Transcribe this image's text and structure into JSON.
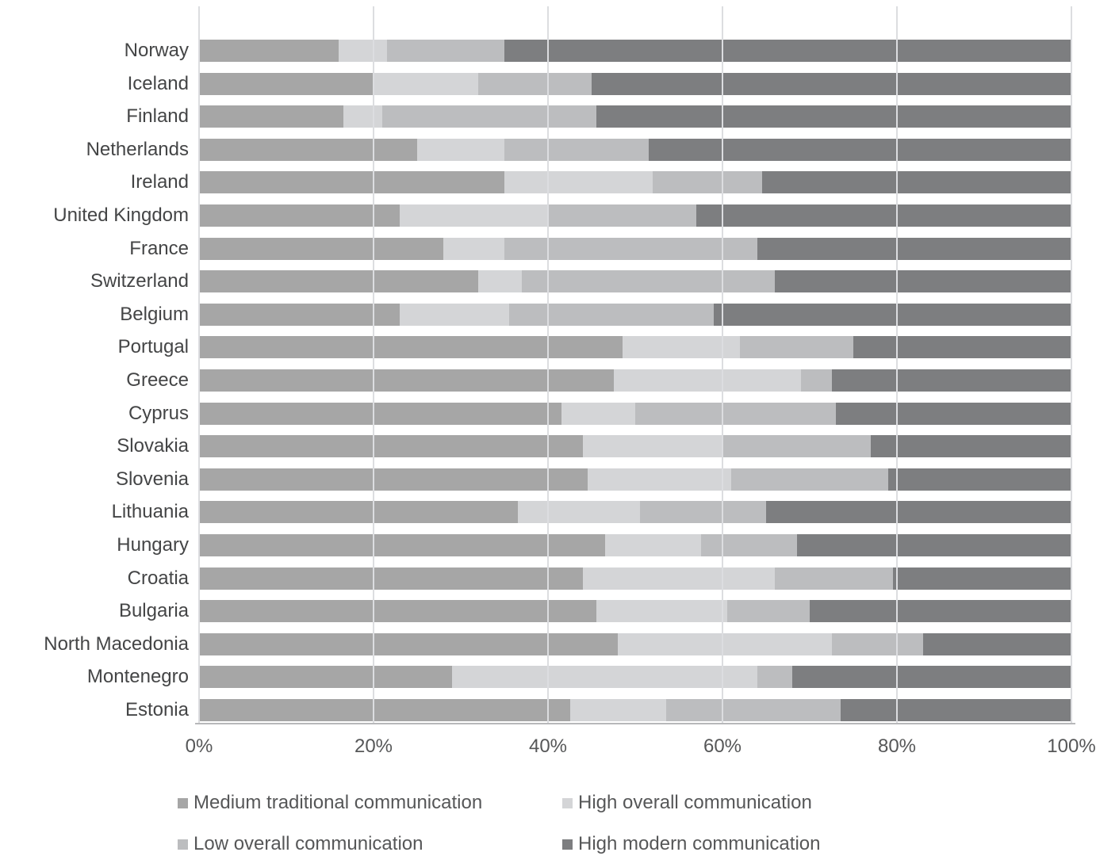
{
  "chart_data": {
    "type": "bar",
    "orientation": "horizontal",
    "stacked": true,
    "stacked_total": 100,
    "title": "",
    "xlabel": "",
    "ylabel": "",
    "grid": true,
    "legend_position": "bottom",
    "categories": [
      "Norway",
      "Iceland",
      "Finland",
      "Netherlands",
      "Ireland",
      "United Kingdom",
      "France",
      "Switzerland",
      "Belgium",
      "Portugal",
      "Greece",
      "Cyprus",
      "Slovakia",
      "Slovenia",
      "Lithuania",
      "Hungary",
      "Croatia",
      "Bulgaria",
      "North Macedonia",
      "Montenegro",
      "Estonia"
    ],
    "series": [
      {
        "name": "Medium traditional communication",
        "color": "#a6a6a6",
        "values": [
          16,
          20,
          16.5,
          25,
          35,
          23,
          28,
          32,
          23,
          48.5,
          47.5,
          41.5,
          44,
          44.5,
          36.5,
          46.5,
          44,
          45.5,
          48,
          29,
          42.5
        ]
      },
      {
        "name": "High overall communication",
        "color": "#d4d5d7",
        "values": [
          5.5,
          12,
          4.5,
          10,
          17,
          17,
          7,
          5,
          12.5,
          13.5,
          21.5,
          8.5,
          16,
          16.5,
          14,
          11,
          22,
          15,
          24.5,
          35,
          11
        ]
      },
      {
        "name": "Low overall communication",
        "color": "#bcbdbf",
        "values": [
          13.5,
          13,
          24.5,
          16.5,
          12.5,
          17,
          29,
          29,
          23.5,
          13,
          3.5,
          23,
          17,
          18,
          14.5,
          11,
          13.5,
          9.5,
          10.5,
          4,
          20
        ]
      },
      {
        "name": "High modern communication",
        "color": "#7d7e80",
        "values": [
          65,
          55,
          54.5,
          48.5,
          35.5,
          43,
          36,
          34,
          41,
          25,
          27.5,
          27,
          23,
          21,
          35,
          31.5,
          20.5,
          30,
          17,
          32,
          26.5
        ]
      }
    ],
    "x_axis": {
      "min": 0,
      "max": 100,
      "unit": "%",
      "ticks": [
        "0%",
        "20%",
        "40%",
        "60%",
        "80%",
        "100%"
      ]
    },
    "colors": {
      "gridline": "#dcdde0",
      "axis_line": "#b7b8ba",
      "tick_text": "#565758",
      "category_text": "#444546",
      "background": "#ffffff"
    }
  }
}
